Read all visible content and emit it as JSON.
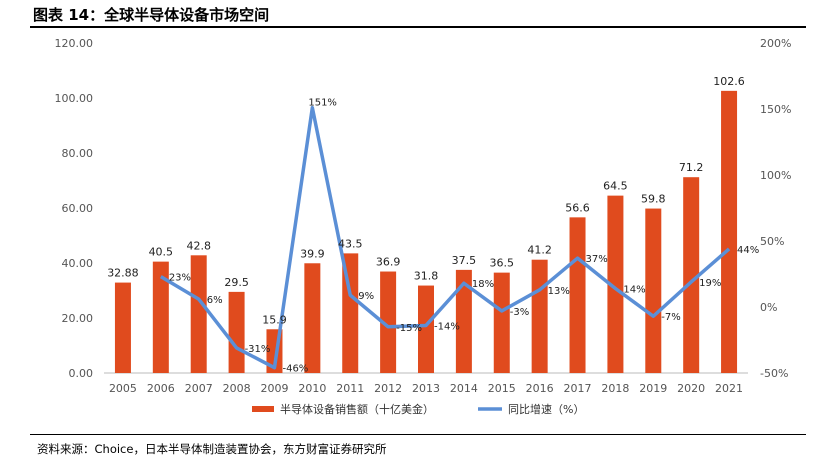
{
  "title": "图表 14：全球半导体设备市场空间",
  "source": "资料来源：Choice，日本半导体制造装置协会，东方财富证券研究所",
  "colors": {
    "bar": "#E04B1E",
    "line": "#5B8FD6"
  },
  "chart_data": {
    "type": "bar",
    "categories": [
      "2005",
      "2006",
      "2007",
      "2008",
      "2009",
      "2010",
      "2011",
      "2012",
      "2013",
      "2014",
      "2015",
      "2016",
      "2017",
      "2018",
      "2019",
      "2020",
      "2021"
    ],
    "series": [
      {
        "name": "半导体设备销售额（十亿美金）",
        "type": "bar",
        "axis": "left",
        "values": [
          32.88,
          40.5,
          42.8,
          29.5,
          15.9,
          39.9,
          43.5,
          36.9,
          31.8,
          37.5,
          36.5,
          41.2,
          56.6,
          64.5,
          59.8,
          71.2,
          102.6
        ],
        "labels": [
          "32.88",
          "40.5",
          "42.8",
          "29.5",
          "15.9",
          "39.9",
          "43.5",
          "36.9",
          "31.8",
          "37.5",
          "36.5",
          "41.2",
          "56.6",
          "64.5",
          "59.8",
          "71.2",
          "102.6"
        ]
      },
      {
        "name": "同比增速（%）",
        "type": "line",
        "axis": "right",
        "values": [
          null,
          23,
          6,
          -31,
          -46,
          151,
          9,
          -15,
          -14,
          18,
          -3,
          13,
          37,
          14,
          -7,
          19,
          44
        ],
        "labels": [
          "",
          "23%",
          "6%",
          "-31%",
          "-46%",
          "151%",
          "9%",
          "-15%",
          "-14%",
          "18%",
          "-3%",
          "13%",
          "37%",
          "14%",
          "-7%",
          "19%",
          "44%"
        ]
      }
    ],
    "y_left": {
      "min": 0,
      "max": 120,
      "ticks": [
        "0.00",
        "20.00",
        "40.00",
        "60.00",
        "80.00",
        "100.00",
        "120.00"
      ]
    },
    "y_right": {
      "min": -50,
      "max": 200,
      "ticks": [
        "-50%",
        "0%",
        "50%",
        "100%",
        "150%",
        "200%"
      ]
    },
    "grid": false,
    "legend": "bottom"
  }
}
